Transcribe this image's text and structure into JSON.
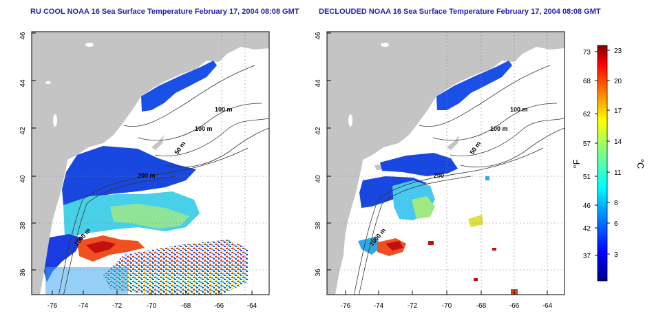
{
  "panels": [
    {
      "title": "RU COOL NOAA 16 Sea Surface Temperature February 17, 2004 08:08 GMT",
      "contour_labels": [
        "100 m",
        "100 m",
        "50 m",
        "200 m",
        "1000 m"
      ]
    },
    {
      "title": "DECLOUDED NOAA 16 Sea Surface Temperature February 17, 2004 08:08 GMT",
      "contour_labels": [
        "100 m",
        "100 m",
        "50 m",
        "200",
        "1000 m"
      ]
    }
  ],
  "axes": {
    "lat_ticks": [
      "36",
      "38",
      "40",
      "42",
      "44",
      "46"
    ],
    "lon_ticks": [
      "-76",
      "-74",
      "-72",
      "-70",
      "-68",
      "-66",
      "-64"
    ]
  },
  "colorbar": {
    "left_unit": "°F",
    "right_unit": "°C",
    "f_ticks": [
      "73",
      "68",
      "62",
      "57",
      "51",
      "46",
      "42",
      "37"
    ],
    "c_ticks": [
      "23",
      "20",
      "17",
      "14",
      "11",
      "8",
      "6",
      "3"
    ]
  },
  "colors": {
    "land": "#c4c4c4",
    "title": "#1f1fa8",
    "cold": "#1010c0",
    "warm": "#d01010"
  }
}
